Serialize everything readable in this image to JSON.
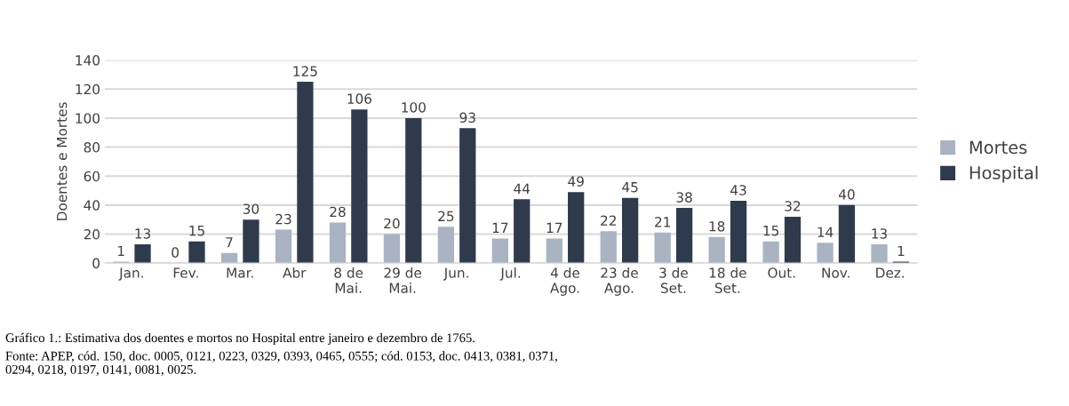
{
  "chart_data": {
    "type": "bar",
    "ylabel": "Doentes e Mortes",
    "categories": [
      "Jan.",
      "Fev.",
      "Mar.",
      "Abr",
      "8 de\nMai.",
      "29 de\nMai.",
      "Jun.",
      "Jul.",
      "4 de\nAgo.",
      "23 de\nAgo.",
      "3 de\nSet.",
      "18 de\nSet.",
      "Out.",
      "Nov.",
      "Dez."
    ],
    "series": [
      {
        "name": "Mortes",
        "color": "#a9b3c2",
        "values": [
          1,
          0,
          7,
          23,
          28,
          20,
          25,
          17,
          17,
          22,
          21,
          18,
          15,
          14,
          13
        ]
      },
      {
        "name": "Hospital",
        "color": "#2f3b4c",
        "values": [
          13,
          15,
          30,
          125,
          106,
          100,
          93,
          44,
          49,
          45,
          38,
          43,
          32,
          40,
          1
        ]
      }
    ],
    "ylim": [
      0,
      140
    ],
    "yticks": [
      0,
      20,
      40,
      60,
      80,
      100,
      120,
      140
    ],
    "grid": "y",
    "legend": "right",
    "data_labels": true,
    "annotations": [
      "Gráfico 1.: Estimativa dos doentes e mortos no Hospital entre janeiro e dezembro de 1765.",
      "Fonte: APEP, cód. 150, doc. 0005, 0121, 0223, 0329, 0393, 0465, 0555; cód. 0153, doc. 0413, 0381, 0371,\n0294, 0218, 0197, 0141, 0081, 0025."
    ]
  }
}
